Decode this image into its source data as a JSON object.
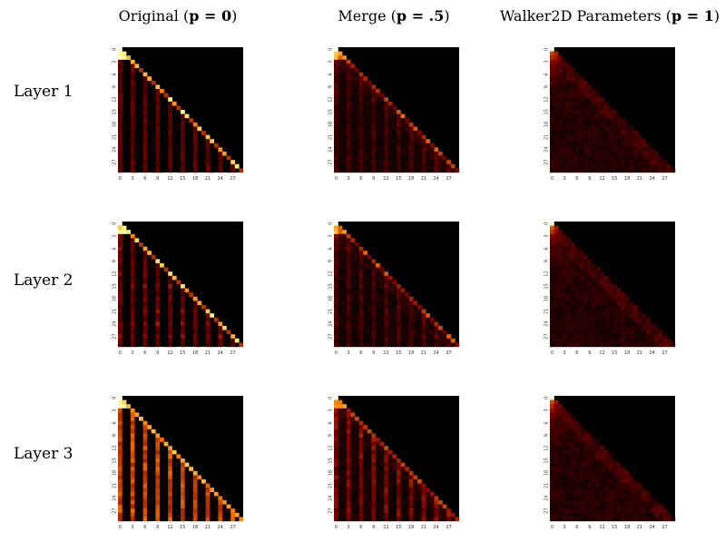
{
  "figure": {
    "column_titles": [
      {
        "text": "Original (",
        "math": "p = 0",
        "close": ")"
      },
      {
        "text": "Merge (",
        "math": "p = .5",
        "close": ")"
      },
      {
        "text": "Walker2D Parameters (",
        "math": "p = 1",
        "close": ")"
      }
    ],
    "row_labels": [
      "Layer 1",
      "Layer 2",
      "Layer 3"
    ]
  },
  "chart_data": {
    "type": "heatmap",
    "grid_size": 30,
    "x_ticks": [
      "0",
      "3",
      "6",
      "9",
      "12",
      "15",
      "18",
      "21",
      "24",
      "27"
    ],
    "y_ticks": [
      "0",
      "3",
      "6",
      "9",
      "12",
      "15",
      "18",
      "21",
      "24",
      "27"
    ],
    "colormap": "afmhot",
    "mask": "lower-triangular (row >= col), upper triangle black",
    "panels": [
      {
        "row": "Layer 1",
        "column": "Original (p = 0)",
        "pattern": "strong diagonal every 3rd step, vertical stripes at every 3rd column"
      },
      {
        "row": "Layer 1",
        "column": "Merge (p = .5)",
        "pattern": "weaker diagonal, faded stripes"
      },
      {
        "row": "Layer 1",
        "column": "Walker2D Parameters (p = 1)",
        "pattern": "diffuse lower triangle, bright top-left"
      },
      {
        "row": "Layer 2",
        "column": "Original (p = 0)",
        "pattern": "strong diagonal, grid-like stripes"
      },
      {
        "row": "Layer 2",
        "column": "Merge (p = .5)",
        "pattern": "moderate diagonal and stripes"
      },
      {
        "row": "Layer 2",
        "column": "Walker2D Parameters (p = 1)",
        "pattern": "diffuse lower triangle"
      },
      {
        "row": "Layer 3",
        "column": "Original (p = 0)",
        "pattern": "strong vertical stripes at every 3rd column"
      },
      {
        "row": "Layer 3",
        "column": "Merge (p = .5)",
        "pattern": "vertical stripes, fading"
      },
      {
        "row": "Layer 3",
        "column": "Walker2D Parameters (p = 1)",
        "pattern": "diffuse lower triangle"
      }
    ]
  }
}
